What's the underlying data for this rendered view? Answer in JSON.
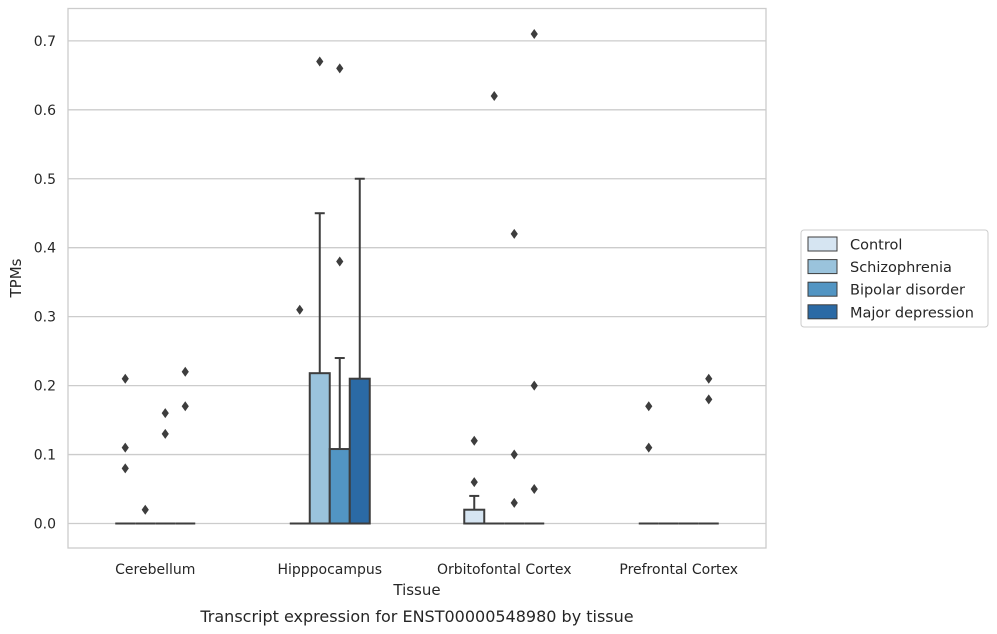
{
  "chart_data": {
    "type": "box",
    "title": "",
    "caption": "Transcript expression for ENST00000548980 by tissue",
    "xlabel": "Tissue",
    "ylabel": "TPMs",
    "ylim": [
      -0.035,
      0.745
    ],
    "yticks": [
      0.0,
      0.1,
      0.2,
      0.3,
      0.4,
      0.5,
      0.6,
      0.7
    ],
    "ytick_labels": [
      "0.0",
      "0.1",
      "0.2",
      "0.3",
      "0.4",
      "0.5",
      "0.6",
      "0.7"
    ],
    "grid": "horizontal",
    "legend_position": "right",
    "categories": [
      "Cerebellum",
      "Hipppocampus",
      "Orbitofontal Cortex",
      "Prefrontal Cortex"
    ],
    "series": [
      {
        "name": "Control",
        "color": "#d6e5f2",
        "boxes": [
          {
            "q1": 0,
            "median": 0,
            "q3": 0,
            "whisker_low": 0,
            "whisker_high": 0,
            "outliers": [
              0.21,
              0.11,
              0.08
            ]
          },
          {
            "q1": 0,
            "median": 0,
            "q3": 0,
            "whisker_low": 0,
            "whisker_high": 0,
            "outliers": [
              0.31
            ]
          },
          {
            "q1": 0,
            "median": 0,
            "q3": 0.02,
            "whisker_low": 0,
            "whisker_high": 0.04,
            "outliers": [
              0.12,
              0.06
            ]
          },
          {
            "q1": 0,
            "median": 0,
            "q3": 0,
            "whisker_low": 0,
            "whisker_high": 0,
            "outliers": [
              0.17,
              0.11
            ]
          }
        ]
      },
      {
        "name": "Schizophrenia",
        "color": "#9ac3dc",
        "boxes": [
          {
            "q1": 0,
            "median": 0,
            "q3": 0,
            "whisker_low": 0,
            "whisker_high": 0,
            "outliers": [
              0.02
            ]
          },
          {
            "q1": 0,
            "median": 0,
            "q3": 0.218,
            "whisker_low": 0,
            "whisker_high": 0.45,
            "outliers": [
              0.67
            ]
          },
          {
            "q1": 0,
            "median": 0,
            "q3": 0,
            "whisker_low": 0,
            "whisker_high": 0,
            "outliers": [
              0.62
            ]
          },
          {
            "q1": 0,
            "median": 0,
            "q3": 0,
            "whisker_low": 0,
            "whisker_high": 0,
            "outliers": []
          }
        ]
      },
      {
        "name": "Bipolar disorder",
        "color": "#5295c3",
        "boxes": [
          {
            "q1": 0,
            "median": 0,
            "q3": 0,
            "whisker_low": 0,
            "whisker_high": 0,
            "outliers": [
              0.16,
              0.13
            ]
          },
          {
            "q1": 0,
            "median": 0,
            "q3": 0.108,
            "whisker_low": 0,
            "whisker_high": 0.24,
            "outliers": [
              0.66,
              0.38
            ]
          },
          {
            "q1": 0,
            "median": 0,
            "q3": 0,
            "whisker_low": 0,
            "whisker_high": 0,
            "outliers": [
              0.42,
              0.1,
              0.03
            ]
          },
          {
            "q1": 0,
            "median": 0,
            "q3": 0,
            "whisker_low": 0,
            "whisker_high": 0,
            "outliers": []
          }
        ]
      },
      {
        "name": "Major depression",
        "color": "#2b6aa5",
        "boxes": [
          {
            "q1": 0,
            "median": 0,
            "q3": 0,
            "whisker_low": 0,
            "whisker_high": 0,
            "outliers": [
              0.22,
              0.17
            ]
          },
          {
            "q1": 0,
            "median": 0,
            "q3": 0.21,
            "whisker_low": 0,
            "whisker_high": 0.5,
            "outliers": []
          },
          {
            "q1": 0,
            "median": 0,
            "q3": 0,
            "whisker_low": 0,
            "whisker_high": 0,
            "outliers": [
              0.71,
              0.2,
              0.05
            ]
          },
          {
            "q1": 0,
            "median": 0,
            "q3": 0,
            "whisker_low": 0,
            "whisker_high": 0,
            "outliers": [
              0.21,
              0.18
            ]
          }
        ]
      }
    ]
  }
}
